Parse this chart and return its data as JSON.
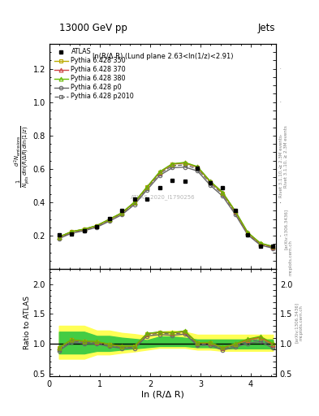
{
  "title_left": "13000 GeV pp",
  "title_right": "Jets",
  "panel_label": "ln(R/Δ R) (Lund plane 2.63<ln(1/z)<2.91)",
  "watermark": "ATLAS_2020_I1790256",
  "rivet_label": "Rivet 3.1.10, ≥ 2.3M events",
  "arxiv_label": "[arXiv:1306.3436]",
  "mcplots_label": "mcplots.cern.ch",
  "ylabel_main": "$\\frac{1}{N_{\\rm jets}}\\frac{d^2 N_{\\rm emissions}}{d\\ln(R/\\Delta R)\\,d\\ln(1/z)}$",
  "ylabel_ratio": "Ratio to ATLAS",
  "xlabel": "ln (R/Δ R)",
  "x_atlas": [
    0.19,
    0.44,
    0.69,
    0.94,
    1.19,
    1.44,
    1.69,
    1.94,
    2.19,
    2.44,
    2.69,
    2.94,
    3.19,
    3.44,
    3.69,
    3.94,
    4.19,
    4.44
  ],
  "y_atlas": [
    0.207,
    0.21,
    0.23,
    0.252,
    0.301,
    0.353,
    0.419,
    0.421,
    0.487,
    0.532,
    0.527,
    0.605,
    0.516,
    0.49,
    0.349,
    0.204,
    0.139,
    0.135
  ],
  "x_mc": [
    0.19,
    0.44,
    0.69,
    0.94,
    1.19,
    1.44,
    1.69,
    1.94,
    2.19,
    2.44,
    2.69,
    2.94,
    3.19,
    3.44,
    3.69,
    3.94,
    4.19,
    4.44
  ],
  "y_py350": [
    0.192,
    0.224,
    0.239,
    0.26,
    0.297,
    0.336,
    0.4,
    0.491,
    0.579,
    0.628,
    0.635,
    0.61,
    0.524,
    0.456,
    0.345,
    0.216,
    0.153,
    0.133
  ],
  "y_py370": [
    0.192,
    0.224,
    0.239,
    0.26,
    0.298,
    0.337,
    0.401,
    0.492,
    0.581,
    0.629,
    0.637,
    0.612,
    0.526,
    0.458,
    0.347,
    0.218,
    0.154,
    0.134
  ],
  "y_py380": [
    0.193,
    0.225,
    0.24,
    0.261,
    0.299,
    0.338,
    0.402,
    0.493,
    0.583,
    0.631,
    0.639,
    0.614,
    0.528,
    0.46,
    0.349,
    0.22,
    0.156,
    0.136
  ],
  "y_py_p0": [
    0.183,
    0.215,
    0.23,
    0.251,
    0.287,
    0.326,
    0.387,
    0.475,
    0.561,
    0.607,
    0.611,
    0.588,
    0.504,
    0.437,
    0.329,
    0.205,
    0.144,
    0.125
  ],
  "y_py_p2010": [
    0.188,
    0.22,
    0.235,
    0.256,
    0.294,
    0.333,
    0.396,
    0.485,
    0.572,
    0.619,
    0.624,
    0.601,
    0.517,
    0.449,
    0.339,
    0.212,
    0.149,
    0.13
  ],
  "ratio_py350": [
    0.928,
    1.067,
    1.039,
    1.032,
    0.986,
    0.952,
    0.955,
    1.167,
    1.19,
    1.18,
    1.205,
    1.008,
    1.015,
    0.93,
    0.989,
    1.059,
    1.101,
    0.985
  ],
  "ratio_py370": [
    0.928,
    1.067,
    1.039,
    1.032,
    0.99,
    0.955,
    0.957,
    1.169,
    1.193,
    1.183,
    1.208,
    1.012,
    1.019,
    0.935,
    0.994,
    1.069,
    1.108,
    0.993
  ],
  "ratio_py380": [
    0.932,
    1.071,
    1.043,
    1.036,
    0.993,
    0.958,
    0.96,
    1.171,
    1.197,
    1.186,
    1.213,
    1.015,
    1.023,
    0.939,
    1.0,
    1.078,
    1.122,
    1.007
  ],
  "ratio_py_p0": [
    0.884,
    1.024,
    1.0,
    0.996,
    0.953,
    0.923,
    0.924,
    1.129,
    1.152,
    1.141,
    1.16,
    0.972,
    0.977,
    0.892,
    0.943,
    1.005,
    1.036,
    0.926
  ],
  "ratio_py_p2010": [
    0.908,
    1.048,
    1.022,
    1.016,
    0.977,
    0.943,
    0.945,
    1.153,
    1.175,
    1.164,
    1.184,
    0.993,
    1.002,
    0.917,
    0.971,
    1.039,
    1.072,
    0.963
  ],
  "band_yellow_lo": [
    0.748,
    0.748,
    0.748,
    0.82,
    0.82,
    0.848,
    0.87,
    0.9,
    0.93,
    0.93,
    0.93,
    0.9,
    0.9,
    0.88,
    0.88,
    0.88,
    0.88,
    0.88
  ],
  "band_yellow_hi": [
    1.3,
    1.3,
    1.3,
    1.22,
    1.22,
    1.18,
    1.16,
    1.13,
    1.2,
    1.22,
    1.2,
    1.15,
    1.15,
    1.15,
    1.15,
    1.15,
    1.15,
    1.15
  ],
  "band_green_lo": [
    0.835,
    0.835,
    0.835,
    0.878,
    0.878,
    0.9,
    0.92,
    0.94,
    0.96,
    0.96,
    0.96,
    0.94,
    0.94,
    0.92,
    0.92,
    0.92,
    0.92,
    0.92
  ],
  "band_green_hi": [
    1.2,
    1.2,
    1.2,
    1.13,
    1.13,
    1.1,
    1.08,
    1.06,
    1.12,
    1.12,
    1.1,
    1.07,
    1.07,
    1.07,
    1.07,
    1.07,
    1.07,
    1.07
  ],
  "color_py350": "#bbaa00",
  "color_py370": "#cc4444",
  "color_py380": "#66bb00",
  "color_py_p0": "#666666",
  "color_py_p2010": "#666666",
  "xlim": [
    0.0,
    4.5
  ],
  "ylim_main": [
    0.0,
    1.35
  ],
  "ylim_ratio": [
    0.45,
    2.25
  ],
  "yticks_main": [
    0.2,
    0.4,
    0.6,
    0.8,
    1.0,
    1.2
  ],
  "yticks_ratio": [
    0.5,
    1.0,
    1.5,
    2.0
  ],
  "xticks": [
    0,
    1,
    2,
    3,
    4
  ]
}
